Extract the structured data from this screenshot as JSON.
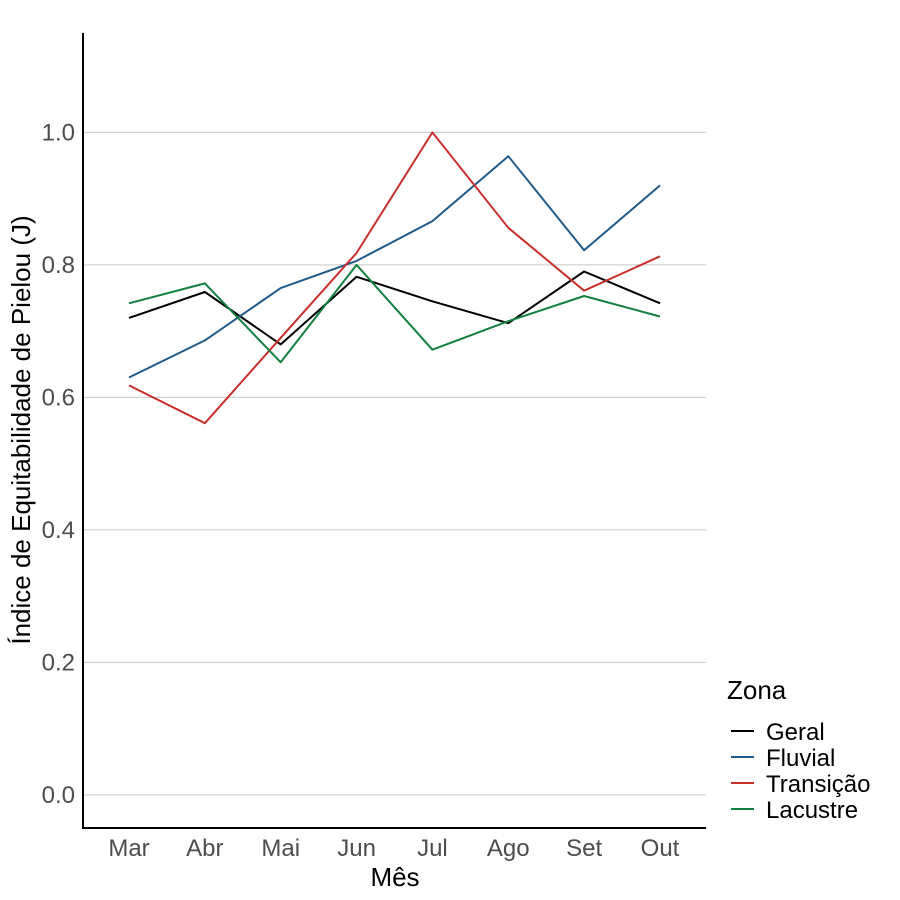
{
  "chart_data": {
    "type": "line",
    "xlabel": "Mês",
    "ylabel": "Índice de Equitabilidade de Pielou (J)",
    "categories": [
      "Mar",
      "Abr",
      "Mai",
      "Jun",
      "Jul",
      "Ago",
      "Set",
      "Out"
    ],
    "ylim": [
      -0.05,
      1.15
    ],
    "yticks": [
      "0.0",
      "0.2",
      "0.4",
      "0.6",
      "0.8",
      "1.0"
    ],
    "grid": "horizontal major gridlines",
    "legend": {
      "title": "Zona",
      "position": "right"
    },
    "series": [
      {
        "name": "Geral",
        "color": "#000000",
        "values": [
          0.72,
          0.759,
          0.68,
          0.782,
          0.745,
          0.712,
          0.79,
          0.742
        ]
      },
      {
        "name": "Fluvial",
        "color": "#1f5a8a",
        "values": [
          0.63,
          0.686,
          0.765,
          0.806,
          0.866,
          0.964,
          0.822,
          0.92
        ]
      },
      {
        "name": "Transição",
        "color": "#c8302c",
        "values": [
          0.618,
          0.561,
          0.69,
          0.818,
          1.0,
          0.856,
          0.761,
          0.813
        ]
      },
      {
        "name": "Lacustre",
        "color": "#128040",
        "values": [
          0.742,
          0.772,
          0.653,
          0.8,
          0.672,
          0.715,
          0.753,
          0.722
        ]
      }
    ]
  }
}
